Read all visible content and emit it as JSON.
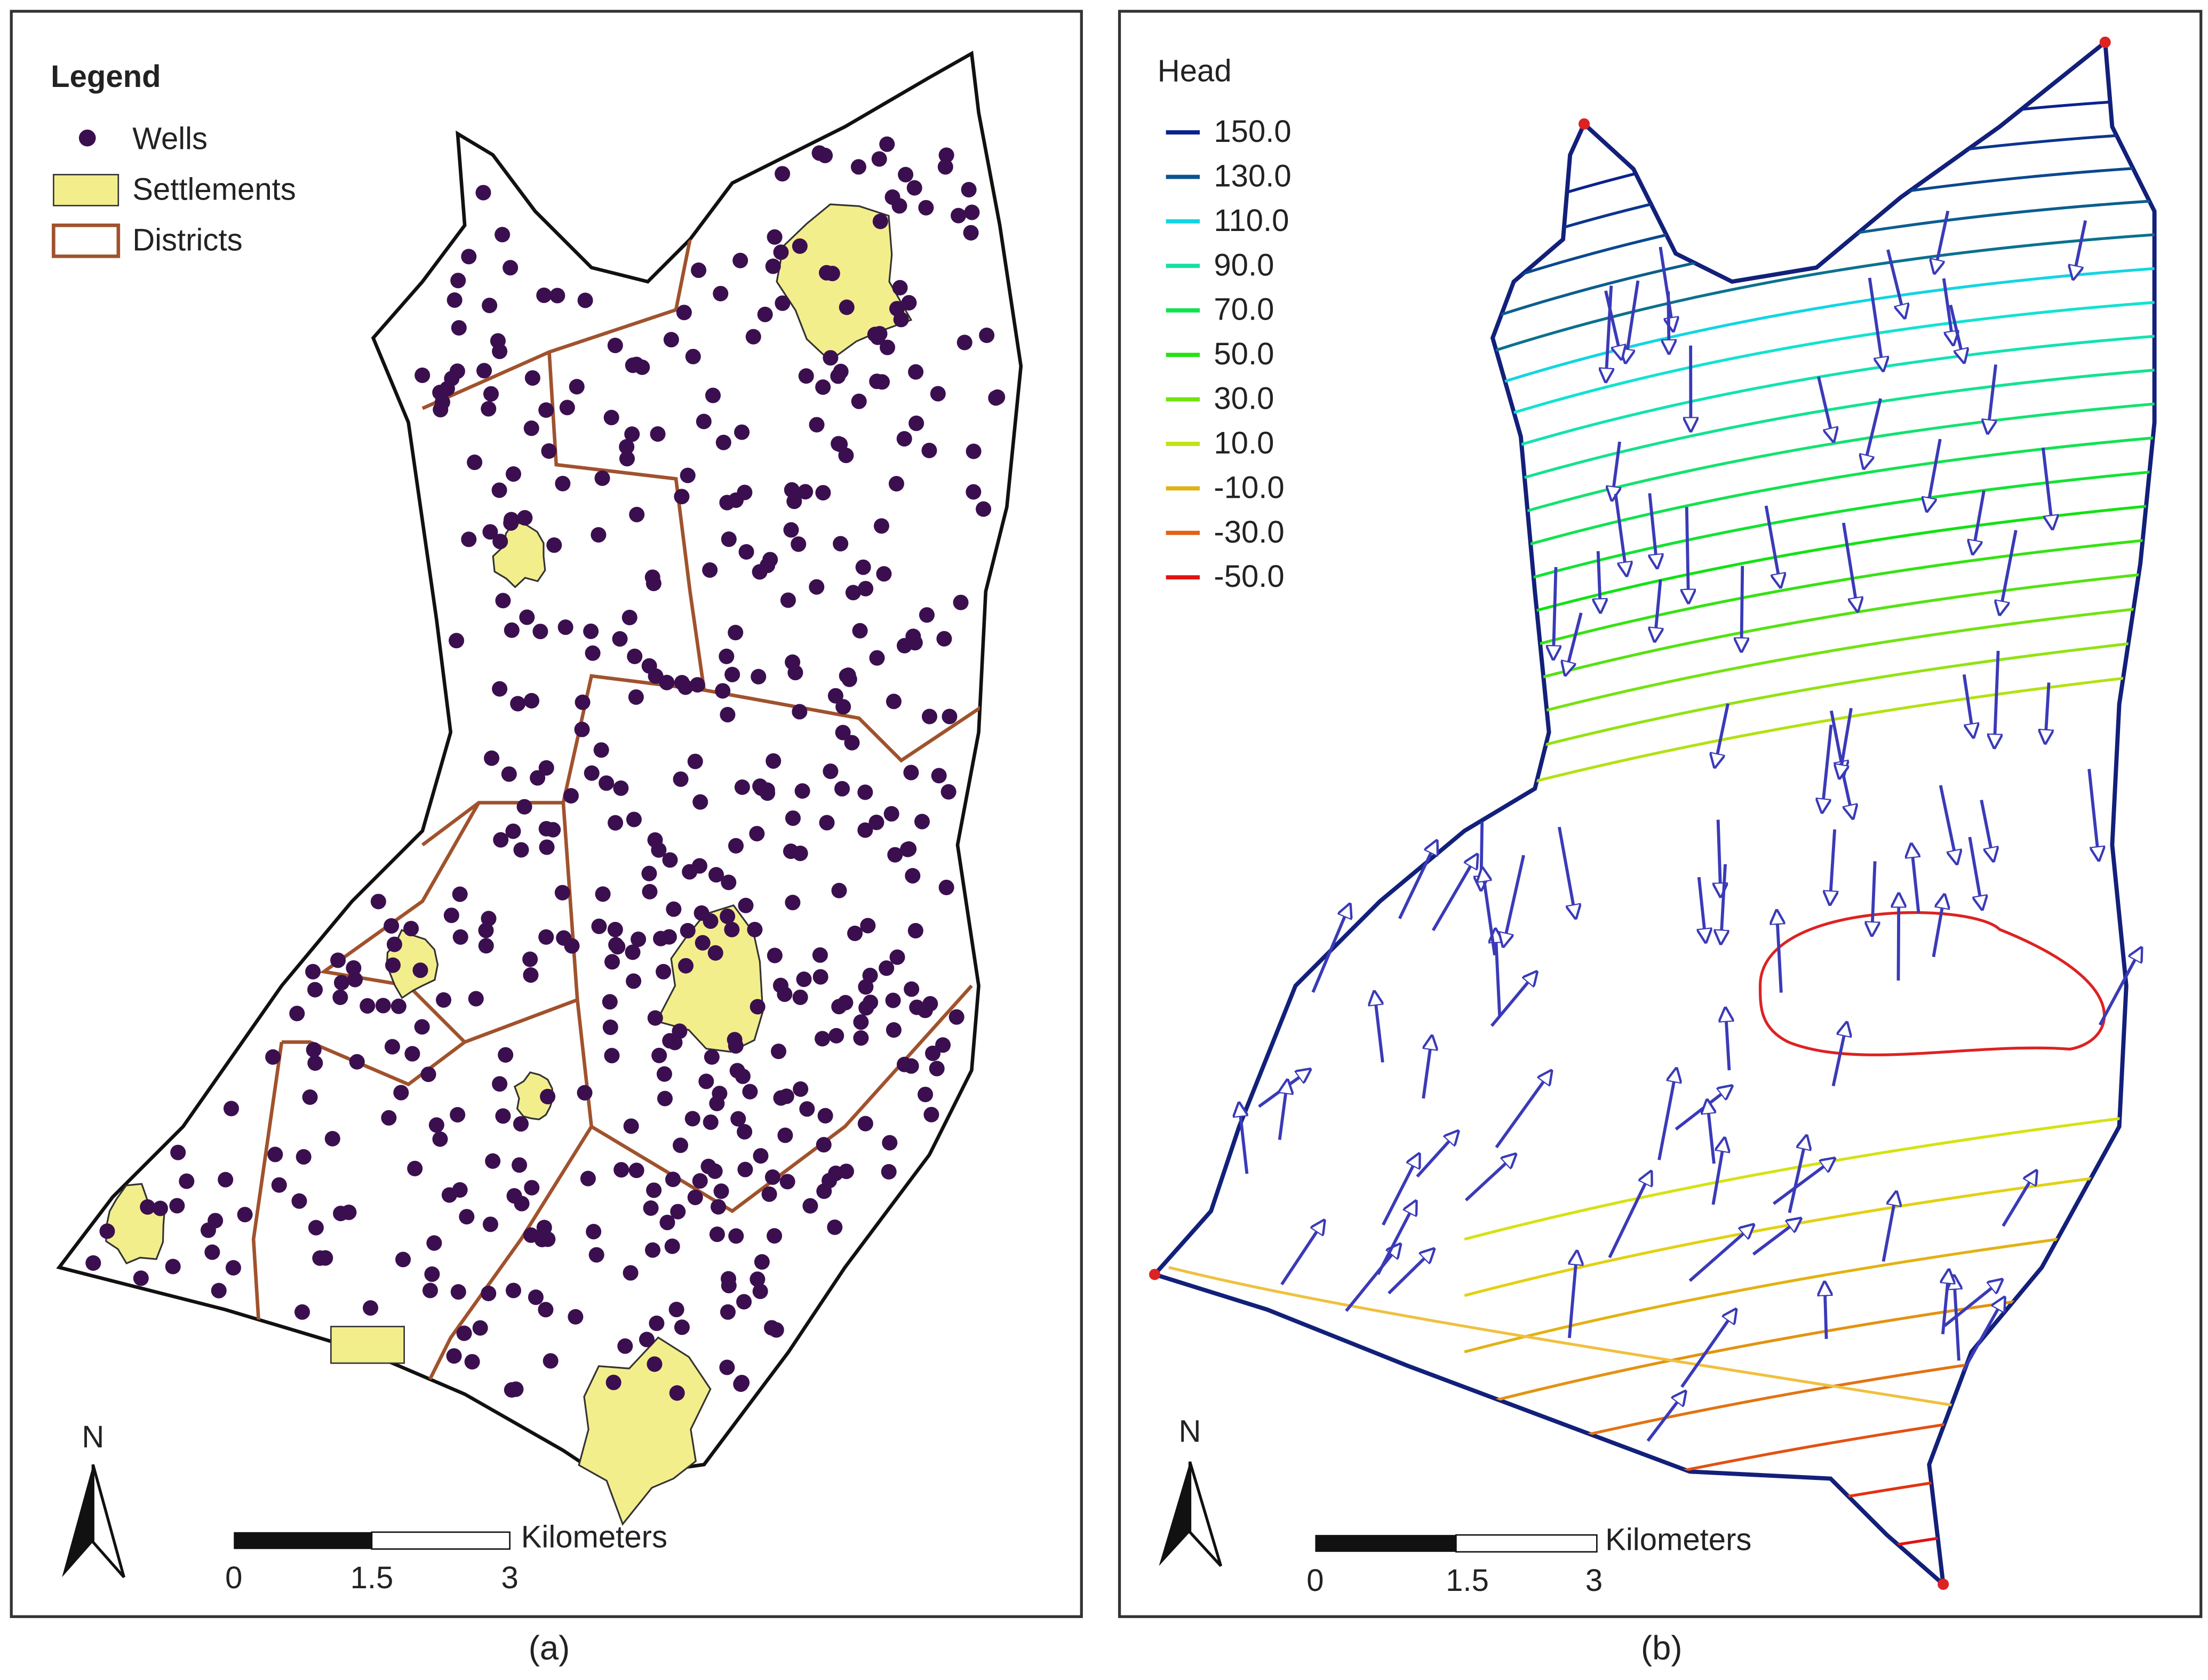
{
  "panels": [
    {
      "legend": {
        "title": "Legend",
        "items": [
          "Wells",
          "Settlements",
          "Districts"
        ]
      },
      "north": "N",
      "scale": {
        "unit": "Kilometers",
        "labels": [
          "0",
          "1.5",
          "3"
        ]
      },
      "caption": "(a)"
    },
    {
      "legend": {
        "title": "Head",
        "items": [
          "150.0",
          "130.0",
          "110.0",
          "90.0",
          "70.0",
          "50.0",
          "30.0",
          "10.0",
          "-10.0",
          "-30.0",
          "-50.0"
        ]
      },
      "north": "N",
      "scale": {
        "unit": "Kilometers",
        "labels": [
          "0",
          "1.5",
          "3"
        ]
      },
      "caption": "(b)"
    }
  ]
}
